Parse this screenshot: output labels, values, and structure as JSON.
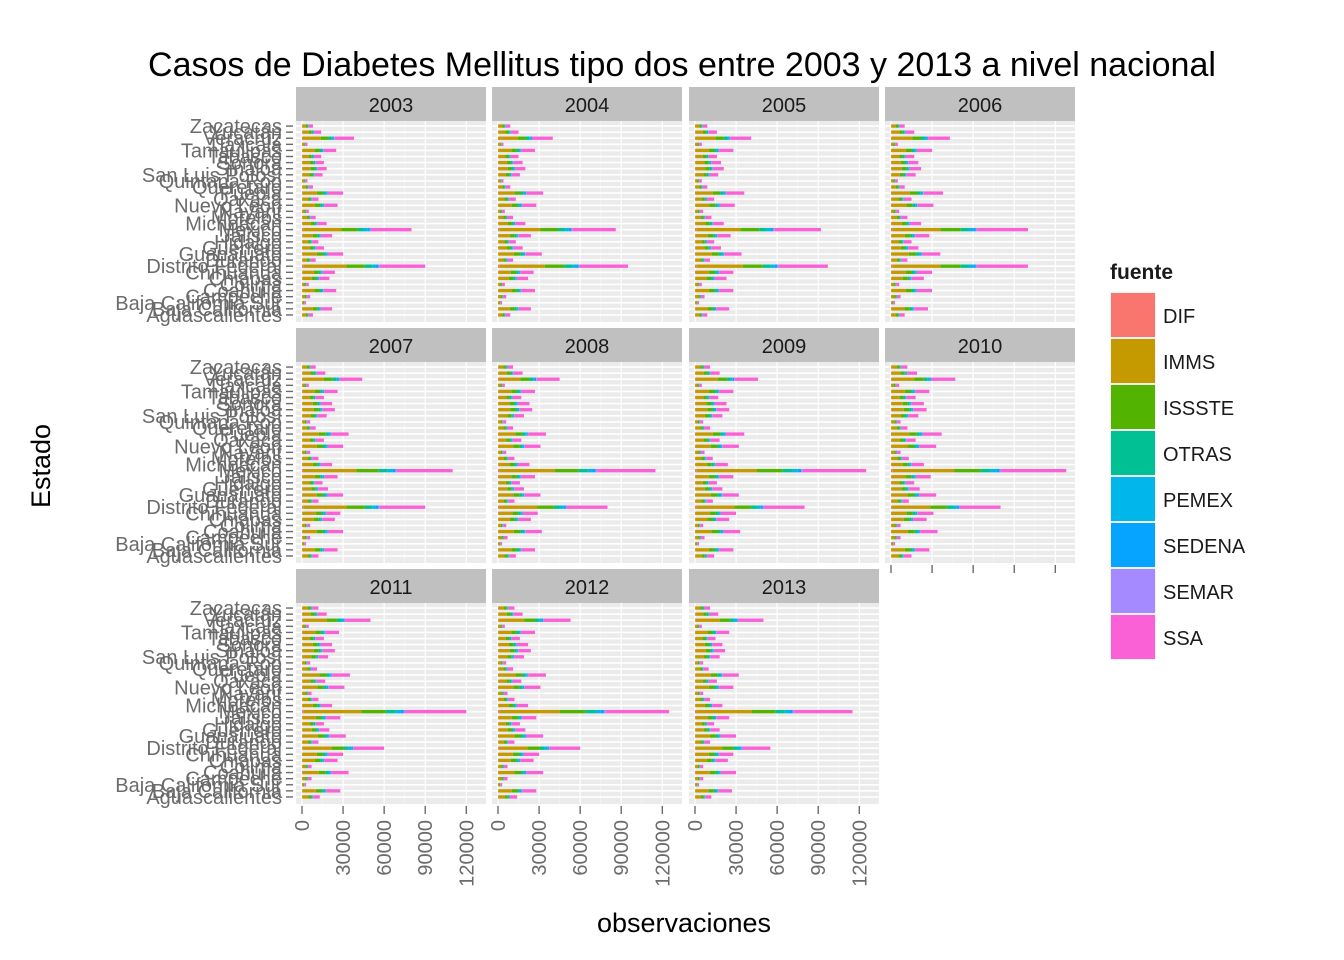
{
  "chart_data": {
    "type": "bar",
    "orientation": "horizontal",
    "stacked": true,
    "facet_by": "year",
    "title": "Casos de Diabetes Mellitus tipo dos entre 2003 y 2013 a nivel nacional",
    "xlabel": "observaciones",
    "ylabel": "Estado",
    "xlim": [
      0,
      130000
    ],
    "x_ticks": [
      0,
      30000,
      60000,
      90000,
      120000
    ],
    "grid": true,
    "legend_title": "fuente",
    "legend_position": "right",
    "sources": [
      "DIF",
      "IMMS",
      "ISSSTE",
      "OTRAS",
      "PEMEX",
      "SEDENA",
      "SEMAR",
      "SSA"
    ],
    "colors": {
      "DIF": "#F8766D",
      "IMMS": "#C49A00",
      "ISSSTE": "#53B400",
      "OTRAS": "#00C094",
      "PEMEX": "#00B6EB",
      "SEDENA": "#06A4FF",
      "SEMAR": "#A58AFF",
      "SSA": "#FB61D7"
    },
    "states_bottom_to_top": [
      "Aguascalientes",
      "Baja California",
      "Baja California Sur",
      "Campeche",
      "Coahuila",
      "Colima",
      "Chiapas",
      "Chihuahua",
      "Distrito Federal",
      "Durango",
      "Guanajuato",
      "Guerrero",
      "Hidalgo",
      "Jalisco",
      "México",
      "Michoacán",
      "Morelos",
      "Nayarit",
      "Nuevo León",
      "Oaxaca",
      "Puebla",
      "Querétaro",
      "Quintana Roo",
      "San Luis Potosí",
      "Sinaloa",
      "Sonora",
      "Tabasco",
      "Tamaulipas",
      "Tlaxcala",
      "Veracruz",
      "Yucatán",
      "Zacatecas"
    ],
    "state_totals_by_year": {
      "2003": [
        8000,
        22000,
        3000,
        6000,
        25000,
        5000,
        20000,
        24000,
        90000,
        10000,
        30000,
        16000,
        12000,
        22000,
        80000,
        18000,
        10000,
        5000,
        26000,
        12000,
        30000,
        8000,
        4000,
        15000,
        18000,
        16000,
        14000,
        25000,
        4000,
        38000,
        14000,
        8000
      ],
      "2004": [
        9000,
        24000,
        3000,
        6000,
        27000,
        5000,
        22000,
        26000,
        95000,
        11000,
        32000,
        18000,
        13000,
        24000,
        86000,
        20000,
        11000,
        5000,
        28000,
        13000,
        33000,
        9000,
        4000,
        16000,
        20000,
        18000,
        15000,
        27000,
        4000,
        40000,
        15000,
        9000
      ],
      "2005": [
        9000,
        25000,
        3000,
        7000,
        28000,
        5000,
        23000,
        28000,
        97000,
        11000,
        34000,
        19000,
        14000,
        26000,
        92000,
        21000,
        12000,
        6000,
        29000,
        14000,
        36000,
        9000,
        5000,
        17000,
        21000,
        19000,
        16000,
        28000,
        5000,
        41000,
        16000,
        9000
      ],
      "2006": [
        10000,
        27000,
        3000,
        7000,
        30000,
        6000,
        24000,
        30000,
        100000,
        12000,
        36000,
        20000,
        15000,
        28000,
        100000,
        22000,
        12000,
        6000,
        31000,
        15000,
        38000,
        10000,
        5000,
        18000,
        22000,
        20000,
        17000,
        30000,
        5000,
        43000,
        17000,
        10000
      ],
      "2007": [
        12000,
        26000,
        3000,
        6000,
        30000,
        6000,
        24000,
        28000,
        90000,
        12000,
        30000,
        19000,
        15000,
        26000,
        110000,
        22000,
        12000,
        6000,
        30000,
        16000,
        34000,
        10000,
        6000,
        18000,
        24000,
        22000,
        16000,
        26000,
        5000,
        44000,
        17000,
        10000
      ],
      "2008": [
        13000,
        27000,
        3000,
        7000,
        32000,
        6000,
        24000,
        29000,
        80000,
        12000,
        31000,
        19000,
        16000,
        27000,
        115000,
        23000,
        12000,
        6000,
        31000,
        17000,
        35000,
        11000,
        6000,
        19000,
        25000,
        23000,
        17000,
        27000,
        5000,
        45000,
        18000,
        11000
      ],
      "2009": [
        14000,
        28000,
        3000,
        7000,
        33000,
        6000,
        25000,
        30000,
        80000,
        13000,
        32000,
        20000,
        16000,
        28000,
        125000,
        24000,
        13000,
        7000,
        32000,
        18000,
        36000,
        11000,
        6000,
        20000,
        25000,
        23000,
        17000,
        28000,
        5000,
        46000,
        18000,
        11000
      ],
      "2010": [
        15000,
        28000,
        3000,
        7000,
        34000,
        7000,
        26000,
        31000,
        80000,
        13000,
        33000,
        21000,
        17000,
        29000,
        128000,
        24000,
        13000,
        7000,
        33000,
        18000,
        37000,
        12000,
        7000,
        20000,
        26000,
        24000,
        18000,
        28000,
        6000,
        47000,
        19000,
        12000
      ],
      "2011": [
        13000,
        28000,
        3000,
        7000,
        34000,
        7000,
        26000,
        30000,
        60000,
        12000,
        32000,
        20000,
        16000,
        28000,
        120000,
        22000,
        12000,
        7000,
        31000,
        17000,
        35000,
        11000,
        6000,
        19000,
        24000,
        22000,
        16000,
        27000,
        5000,
        50000,
        18000,
        12000
      ],
      "2012": [
        14000,
        28000,
        3000,
        7000,
        33000,
        7000,
        26000,
        30000,
        60000,
        12000,
        33000,
        20000,
        16000,
        28000,
        125000,
        22000,
        12000,
        7000,
        31000,
        17000,
        35000,
        11000,
        6000,
        19000,
        24000,
        22000,
        16000,
        27000,
        5000,
        53000,
        18000,
        12000
      ],
      "2013": [
        12000,
        27000,
        3000,
        6000,
        30000,
        6000,
        24000,
        28000,
        55000,
        11000,
        30000,
        18000,
        14000,
        25000,
        115000,
        20000,
        11000,
        6000,
        28000,
        16000,
        32000,
        10000,
        6000,
        18000,
        22000,
        20000,
        15000,
        25000,
        5000,
        50000,
        17000,
        11000
      ]
    },
    "source_share": {
      "DIF": 0.01,
      "IMMS": 0.35,
      "ISSSTE": 0.15,
      "OTRAS": 0.06,
      "PEMEX": 0.03,
      "SEDENA": 0.02,
      "SEMAR": 0.01,
      "SSA": 0.37
    }
  }
}
